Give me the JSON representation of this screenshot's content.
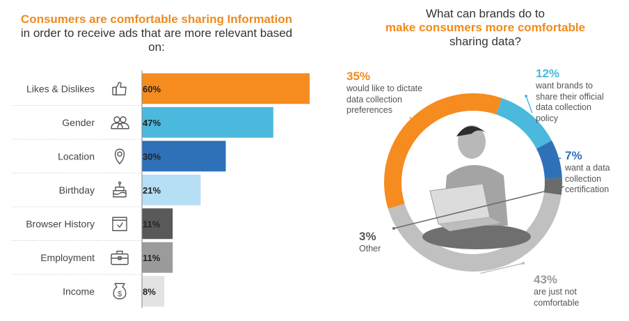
{
  "left_chart": {
    "title_highlight": "Consumers are comfortable sharing Information",
    "title_rest": "in order to receive ads that are more relevant based on:"
  },
  "right_chart": {
    "title_line1": "What can brands do to",
    "title_highlight": "make consumers more comfortable",
    "title_line3": "sharing data?"
  },
  "chart_data": [
    {
      "type": "bar",
      "orientation": "horizontal",
      "categories": [
        "Likes & Dislikes",
        "Gender",
        "Location",
        "Birthday",
        "Browser History",
        "Employment",
        "Income"
      ],
      "values": [
        60,
        47,
        30,
        21,
        11,
        11,
        8
      ],
      "value_labels": [
        "60%",
        "47%",
        "30%",
        "21%",
        "11%",
        "11%",
        "8%"
      ],
      "colors": [
        "#f68b1f",
        "#4bb9dd",
        "#2e71b8",
        "#b6def5",
        "#595959",
        "#9b9b9b",
        "#e3e3e3"
      ],
      "icons": [
        "thumbs-up-icon",
        "users-icon",
        "location-pin-icon",
        "birthday-cake-icon",
        "browser-window-icon",
        "briefcase-icon",
        "money-bag-icon"
      ],
      "xlim": [
        0,
        60
      ],
      "grid": false
    },
    {
      "type": "pie",
      "variant": "donut",
      "slices": [
        {
          "value": 43,
          "label": "43%",
          "text": "are just not comfortable",
          "color": "#c0c0c0"
        },
        {
          "value": 35,
          "label": "35%",
          "text": "would like to dictate data collection preferences",
          "color": "#f68b1f"
        },
        {
          "value": 12,
          "label": "12%",
          "text": "want brands to share their official data collection policy",
          "color": "#4bb9dd"
        },
        {
          "value": 7,
          "label": "7%",
          "text": "want a data collection certification",
          "color": "#2e71b8"
        },
        {
          "value": 3,
          "label": "3%",
          "text": "Other",
          "color": "#6b6b6b"
        }
      ]
    }
  ]
}
